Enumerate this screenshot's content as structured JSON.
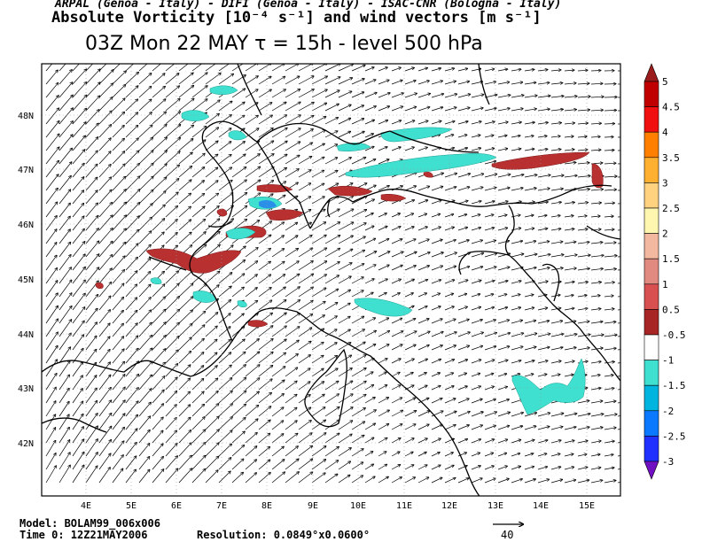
{
  "header": {
    "institutions": "ARPAL (Genoa - Italy)  -  DIFI (Genoa - Italy)  -  ISAC-CNR (Bologna - Italy)",
    "title": "Absolute Vorticity [10⁻⁴ s⁻¹] and wind vectors [m s⁻¹]",
    "subtitle": "03Z Mon 22 MAY  τ = 15h  -  level 500 hPa"
  },
  "map": {
    "lon_labels": [
      "4E",
      "5E",
      "6E",
      "7E",
      "8E",
      "9E",
      "10E",
      "11E",
      "12E",
      "13E",
      "14E",
      "15E"
    ],
    "lat_labels": [
      "48N",
      "47N",
      "46N",
      "45N",
      "44N",
      "43N",
      "42N"
    ],
    "colors": {
      "coast": "#000000",
      "grid": "#888888",
      "frame": "#000000"
    }
  },
  "colorbar": {
    "labels": [
      "5",
      "4.5",
      "4",
      "3.5",
      "3",
      "2.5",
      "2",
      "1.5",
      "1",
      "0.5",
      "-0.5",
      "-1",
      "-1.5",
      "-2",
      "-2.5",
      "-3"
    ],
    "colors": [
      "#9b1c1c",
      "#c00000",
      "#f01010",
      "#ff7f00",
      "#ffb030",
      "#ffd27f",
      "#fff7b0",
      "#f2b8a0",
      "#e08a80",
      "#d85050",
      "#a82525",
      "#ffffff",
      "#40e0d0",
      "#00b4e0",
      "#0a78ff",
      "#2030ff",
      "#7010c0"
    ]
  },
  "footer": {
    "model": "Model: BOLAM99_006x006",
    "time": "Time 0: 12Z21MAY2006",
    "resolution": "Resolution: 0.0849°x0.0600°",
    "ref_vector": "40"
  }
}
